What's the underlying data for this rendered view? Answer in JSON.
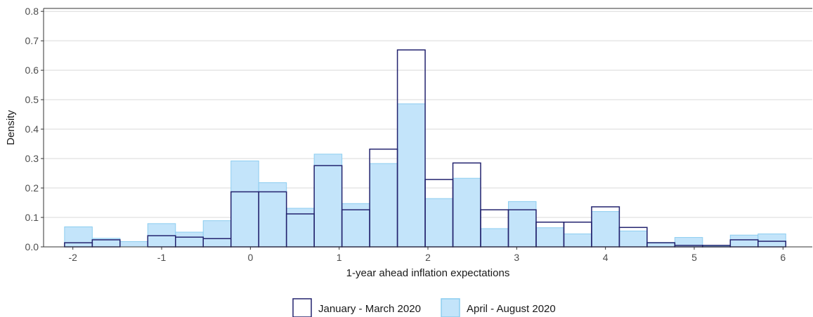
{
  "chart_data": {
    "type": "bar",
    "subtype": "overlaid-histogram",
    "title": "",
    "xlabel": "1-year ahead inflation expectations",
    "ylabel": "Density",
    "xlim": [
      -2.33,
      6.33
    ],
    "ylim": [
      0,
      0.81
    ],
    "bin_width": 0.3125,
    "xticks": [
      -2,
      -1,
      0,
      1,
      2,
      3,
      4,
      5,
      6
    ],
    "xtick_labels": [
      "-2",
      "-1",
      "0",
      "1",
      "2",
      "3",
      "4",
      "5",
      "6"
    ],
    "yticks": [
      0,
      0.1,
      0.2,
      0.3,
      0.4,
      0.5,
      0.6,
      0.7,
      0.8
    ],
    "ytick_labels": [
      "0.0",
      "0.1",
      "0.2",
      "0.3",
      "0.4",
      "0.5",
      "0.6",
      "0.7",
      "0.8"
    ],
    "grid": true,
    "grid_axis": "y",
    "legend_position": "bottom",
    "bin_centers": [
      -1.9375,
      -1.625,
      -1.3125,
      -1.0,
      -0.6875,
      -0.375,
      -0.0625,
      0.25,
      0.5625,
      0.875,
      1.1875,
      1.5,
      1.8125,
      2.125,
      2.4375,
      2.75,
      3.0625,
      3.375,
      3.6875,
      4.0,
      4.3125,
      4.625,
      4.9375,
      5.25,
      5.5625,
      5.875
    ],
    "series": [
      {
        "name": "April - August 2020",
        "style": "filled",
        "fill": "#c3e4fa",
        "stroke": "#8ccdf0",
        "values": [
          0.068,
          0.029,
          0.018,
          0.079,
          0.05,
          0.089,
          0.292,
          0.218,
          0.131,
          0.315,
          0.147,
          0.283,
          0.486,
          0.164,
          0.233,
          0.062,
          0.154,
          0.065,
          0.044,
          0.12,
          0.054,
          0.015,
          0.032,
          0.003,
          0.04,
          0.044
        ]
      },
      {
        "name": "January - March 2020",
        "style": "outline",
        "fill": "none",
        "stroke": "#23236e",
        "values": [
          0.014,
          0.024,
          0.0,
          0.038,
          0.033,
          0.028,
          0.187,
          0.187,
          0.112,
          0.276,
          0.126,
          0.332,
          0.669,
          0.229,
          0.285,
          0.126,
          0.126,
          0.084,
          0.084,
          0.136,
          0.066,
          0.014,
          0.005,
          0.005,
          0.024,
          0.019
        ]
      }
    ]
  }
}
